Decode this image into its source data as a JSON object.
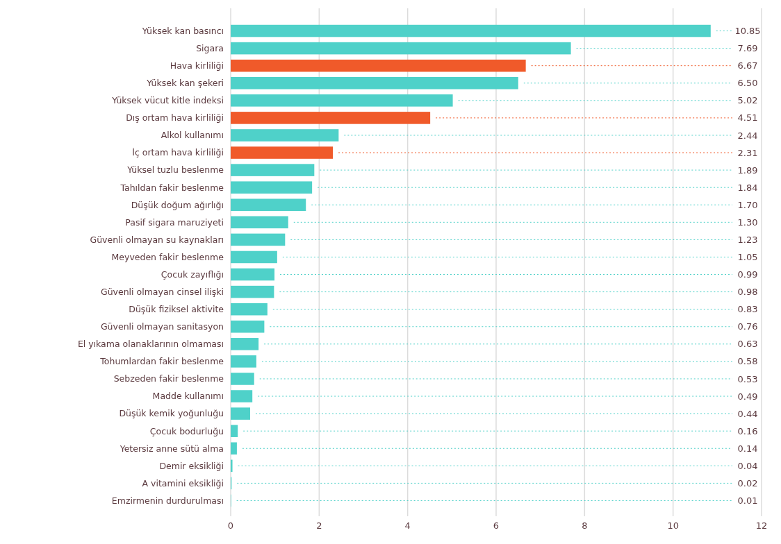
{
  "chart_data": {
    "type": "bar",
    "orientation": "horizontal",
    "categories": [
      "Yüksek kan basıncı",
      "Sigara",
      "Hava kirliliği",
      "Yüksek kan şekeri",
      "Yüksek vücut kitle indeksi",
      "Dış ortam hava kirliliği",
      "Alkol kullanımı",
      "İç ortam hava kirliliği",
      "Yüksel tuzlu beslenme",
      "Tahıldan fakir beslenme",
      "Düşük doğum ağırlığı",
      "Pasif sigara maruziyeti",
      "Güvenli olmayan su kaynakları",
      "Meyveden fakir beslenme",
      "Çocuk zayıflığı",
      "Güvenli olmayan cinsel ilişki",
      "Düşük fiziksel aktivite",
      "Güvenli olmayan sanitasyon",
      "El yıkama olanaklarının olmaması",
      "Tohumlardan fakir beslenme",
      "Sebzeden fakir beslenme",
      "Madde kullanımı",
      "Düşük kemik yoğunluğu",
      "Çocuk bodurluğu",
      "Yetersiz anne sütü alma",
      "Demir eksikliği",
      "A vitamini eksikliği",
      "Emzirmenin durdurulması"
    ],
    "values": [
      10.85,
      7.69,
      6.67,
      6.5,
      5.02,
      4.51,
      2.44,
      2.31,
      1.89,
      1.84,
      1.7,
      1.3,
      1.23,
      1.05,
      0.99,
      0.98,
      0.83,
      0.76,
      0.63,
      0.58,
      0.53,
      0.49,
      0.44,
      0.16,
      0.14,
      0.04,
      0.02,
      0.01
    ],
    "value_labels": [
      "10.85",
      "7.69",
      "6.67",
      "6.50",
      "5.02",
      "4.51",
      "2.44",
      "2.31",
      "1.89",
      "1.84",
      "1.70",
      "1.30",
      "1.23",
      "1.05",
      "0.99",
      "0.98",
      "0.83",
      "0.76",
      "0.63",
      "0.58",
      "0.53",
      "0.49",
      "0.44",
      "0.16",
      "0.14",
      "0.04",
      "0.02",
      "0.01"
    ],
    "colors": [
      "#4fd1c9",
      "#4fd1c9",
      "#f05a2a",
      "#4fd1c9",
      "#4fd1c9",
      "#f05a2a",
      "#4fd1c9",
      "#f05a2a",
      "#4fd1c9",
      "#4fd1c9",
      "#4fd1c9",
      "#4fd1c9",
      "#4fd1c9",
      "#4fd1c9",
      "#4fd1c9",
      "#4fd1c9",
      "#4fd1c9",
      "#4fd1c9",
      "#4fd1c9",
      "#4fd1c9",
      "#4fd1c9",
      "#4fd1c9",
      "#4fd1c9",
      "#4fd1c9",
      "#4fd1c9",
      "#4fd1c9",
      "#4fd1c9",
      "#4fd1c9"
    ],
    "xlim": [
      0,
      12
    ],
    "xticks": [
      0,
      2,
      4,
      6,
      8,
      10,
      12
    ],
    "grid": "x"
  }
}
